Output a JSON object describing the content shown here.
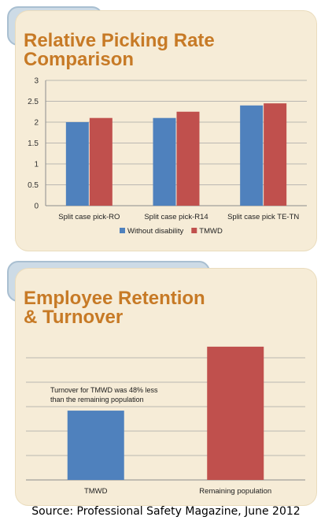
{
  "charts": [
    {
      "title": "Relative Picking Rate\nComparison",
      "chart_data": {
        "type": "bar",
        "categories": [
          "Split case pick-RO",
          "Split case pick-R14",
          "Split case pick TE-TN"
        ],
        "series": [
          {
            "name": "Without disability",
            "values": [
              2.0,
              2.1,
              2.4
            ],
            "color": "#4f81bd"
          },
          {
            "name": "TMWD",
            "values": [
              2.1,
              2.25,
              2.45
            ],
            "color": "#c0504d"
          }
        ],
        "ylim": [
          0,
          3
        ],
        "yticks": [
          "0",
          "0.5",
          "1",
          "1.5",
          "2",
          "2.5",
          "3"
        ],
        "grid": true,
        "legend": "bottom"
      }
    },
    {
      "title": "Employee Retention\n& Turnover",
      "annotation": "Turnover for TMWD was 48% less\nthan the remaining population",
      "chart_data": {
        "type": "bar",
        "categories": [
          "TMWD",
          "Remaining population"
        ],
        "values": [
          52,
          100
        ],
        "colors": [
          "#4f81bd",
          "#c0504d"
        ],
        "grid": true,
        "legend": "none"
      }
    }
  ],
  "source": "Source: Professional Safety Magazine, June 2012"
}
